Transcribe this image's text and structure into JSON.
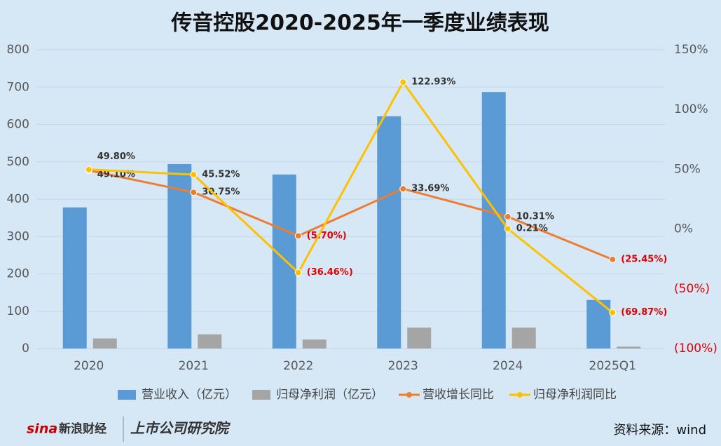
{
  "chart_data": {
    "type": "bar",
    "title": "传音控股2020-2025年一季度业绩表现",
    "categories": [
      "2020",
      "2021",
      "2022",
      "2023",
      "2024",
      "2025Q1"
    ],
    "series": [
      {
        "name": "营业收入（亿元）",
        "type": "bar",
        "color": "#5b9bd5",
        "values": [
          378,
          494,
          466,
          622,
          687,
          130
        ]
      },
      {
        "name": "归母净利润（亿元）",
        "type": "bar",
        "color": "#a5a5a5",
        "values": [
          27,
          38,
          24,
          56,
          56,
          5
        ]
      },
      {
        "name": "营收增长同比",
        "type": "line",
        "axis": "y2",
        "color": "#ed7d31",
        "values": [
          49.1,
          30.75,
          -5.7,
          33.69,
          10.31,
          -25.45
        ],
        "value_labels": [
          "49.10%",
          "30.75%",
          "(5.70%)",
          "33.69%",
          "10.31%",
          "(25.45%)"
        ]
      },
      {
        "name": "归母净利润同比",
        "type": "line",
        "axis": "y2",
        "color": "#ffc000",
        "values": [
          49.8,
          45.52,
          -36.46,
          122.93,
          0.21,
          -69.87
        ],
        "value_labels": [
          "49.80%",
          "45.52%",
          "(36.46%)",
          "122.93%",
          "0.21%",
          "(69.87%)"
        ]
      }
    ],
    "ylim": [
      0,
      800
    ],
    "yticks": [
      0,
      100,
      200,
      300,
      400,
      500,
      600,
      700,
      800
    ],
    "y2lim": [
      -100,
      150
    ],
    "y2ticks": [
      {
        "value": -100,
        "label": "(100%)"
      },
      {
        "value": -50,
        "label": "(50%)"
      },
      {
        "value": 0,
        "label": "0%"
      },
      {
        "value": 50,
        "label": "50%"
      },
      {
        "value": 100,
        "label": "100%"
      },
      {
        "value": 150,
        "label": "150%"
      }
    ],
    "grid": true,
    "legend": "bottom"
  },
  "footer": {
    "logo_left": "新浪财经",
    "logo_right": "上市公司研究院",
    "source": "资料来源：wind"
  }
}
